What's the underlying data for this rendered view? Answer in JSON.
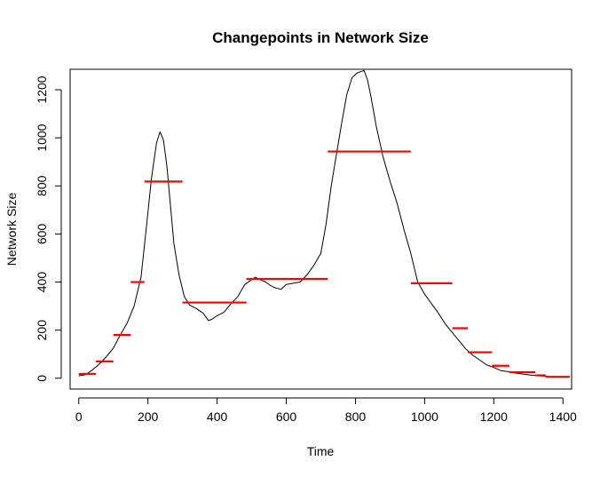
{
  "chart_data": {
    "type": "line",
    "title": "Changepoints in Network Size",
    "xlabel": "Time",
    "ylabel": "Network Size",
    "xlim": [
      -25,
      1425
    ],
    "ylim": [
      -45,
      1285
    ],
    "xticks": [
      0,
      200,
      400,
      600,
      800,
      1000,
      1200,
      1400
    ],
    "yticks": [
      0,
      200,
      400,
      600,
      800,
      1000,
      1200
    ],
    "grid": false,
    "legend": "none",
    "series": [
      {
        "style": "line",
        "color": "#000000",
        "x": [
          0,
          20,
          40,
          60,
          80,
          100,
          120,
          140,
          160,
          180,
          195,
          210,
          225,
          235,
          245,
          255,
          265,
          275,
          290,
          305,
          320,
          340,
          360,
          375,
          385,
          400,
          420,
          440,
          460,
          480,
          495,
          510,
          525,
          540,
          555,
          570,
          585,
          600,
          620,
          640,
          660,
          680,
          700,
          715,
          730,
          745,
          760,
          775,
          790,
          805,
          815,
          825,
          835,
          845,
          860,
          880,
          900,
          920,
          940,
          960,
          980,
          1000,
          1020,
          1040,
          1060,
          1080,
          1100,
          1120,
          1140,
          1160,
          1180,
          1200,
          1220,
          1240,
          1260,
          1280,
          1300,
          1320,
          1340,
          1360,
          1380,
          1400
        ],
        "y": [
          10,
          15,
          35,
          60,
          90,
          125,
          180,
          230,
          300,
          420,
          620,
          830,
          980,
          1025,
          990,
          880,
          720,
          560,
          430,
          340,
          305,
          290,
          270,
          240,
          245,
          260,
          275,
          310,
          340,
          390,
          405,
          420,
          410,
          400,
          385,
          375,
          370,
          390,
          395,
          400,
          430,
          470,
          520,
          640,
          800,
          930,
          1060,
          1180,
          1250,
          1270,
          1275,
          1280,
          1240,
          1170,
          1050,
          920,
          820,
          730,
          620,
          520,
          400,
          350,
          310,
          270,
          225,
          190,
          155,
          120,
          95,
          75,
          55,
          45,
          32,
          28,
          22,
          18,
          14,
          11,
          9,
          7,
          6,
          5
        ]
      },
      {
        "style": "segments",
        "color": "#ff0000",
        "segments": [
          {
            "x0": 0,
            "x1": 50,
            "y": 18
          },
          {
            "x0": 50,
            "x1": 100,
            "y": 70
          },
          {
            "x0": 100,
            "x1": 150,
            "y": 180
          },
          {
            "x0": 150,
            "x1": 190,
            "y": 400
          },
          {
            "x0": 190,
            "x1": 300,
            "y": 818
          },
          {
            "x0": 300,
            "x1": 485,
            "y": 315
          },
          {
            "x0": 485,
            "x1": 720,
            "y": 413
          },
          {
            "x0": 720,
            "x1": 960,
            "y": 943
          },
          {
            "x0": 960,
            "x1": 1080,
            "y": 395
          },
          {
            "x0": 1080,
            "x1": 1125,
            "y": 208
          },
          {
            "x0": 1125,
            "x1": 1195,
            "y": 108
          },
          {
            "x0": 1195,
            "x1": 1245,
            "y": 52
          },
          {
            "x0": 1245,
            "x1": 1320,
            "y": 25
          },
          {
            "x0": 1320,
            "x1": 1350,
            "y": 12
          },
          {
            "x0": 1350,
            "x1": 1420,
            "y": 6
          }
        ]
      }
    ]
  }
}
